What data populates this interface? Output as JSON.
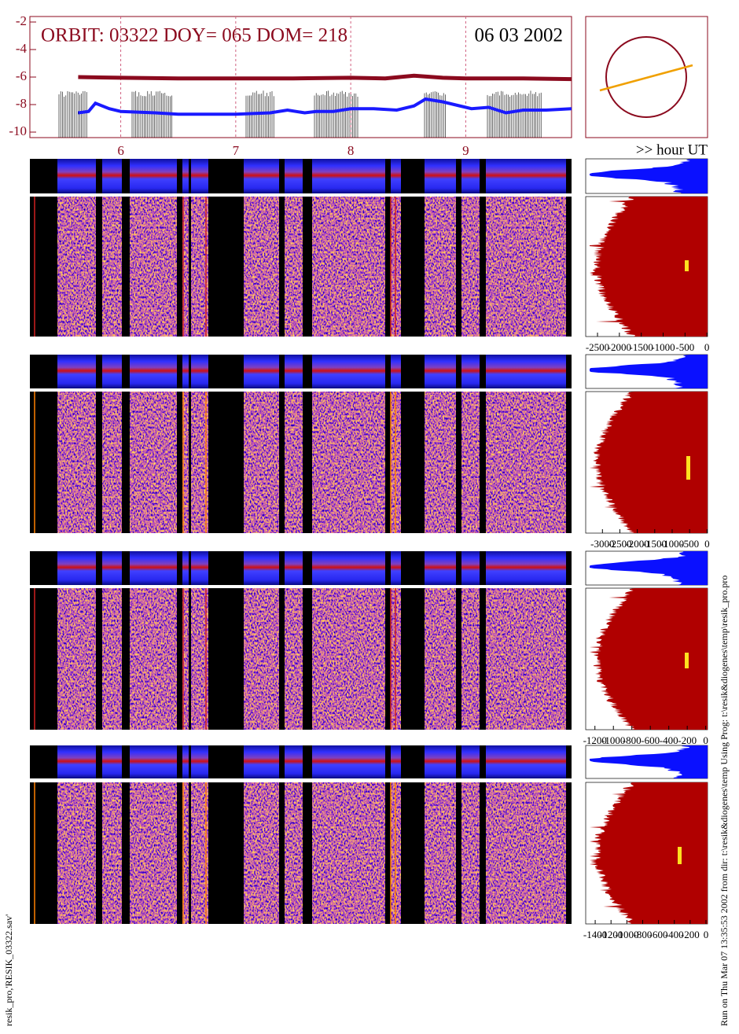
{
  "chart_data": {
    "type": "line",
    "title": "ORBIT: 03322 DOY=  065 DOM=  218",
    "date": "06 03 2002",
    "x_label": ">> hour UT",
    "xlim": [
      5.21,
      9.92
    ],
    "xticks": [
      6,
      7,
      8,
      9
    ],
    "ylim": [
      -10.4,
      -1.6
    ],
    "yticks": [
      -2,
      -4,
      -6,
      -8,
      -10
    ],
    "grid": true,
    "series": [
      {
        "color": "#8b0a1e",
        "x": [
          5.63,
          6.0,
          6.5,
          7.0,
          7.5,
          8.0,
          8.3,
          8.55,
          8.8,
          9.0,
          9.5,
          9.92
        ],
        "values": [
          -6.0,
          -6.05,
          -6.1,
          -6.1,
          -6.1,
          -6.05,
          -6.1,
          -5.9,
          -6.05,
          -6.1,
          -6.1,
          -6.15
        ]
      },
      {
        "color": "#1a1aff",
        "x": [
          5.63,
          5.72,
          5.78,
          5.9,
          6.0,
          6.3,
          6.5,
          6.8,
          7.0,
          7.3,
          7.45,
          7.6,
          7.7,
          7.85,
          8.0,
          8.2,
          8.4,
          8.55,
          8.65,
          8.8,
          8.95,
          9.05,
          9.2,
          9.35,
          9.5,
          9.7,
          9.92
        ],
        "values": [
          -8.6,
          -8.5,
          -7.9,
          -8.3,
          -8.5,
          -8.6,
          -8.7,
          -8.7,
          -8.7,
          -8.6,
          -8.4,
          -8.6,
          -8.5,
          -8.5,
          -8.3,
          -8.3,
          -8.4,
          -8.1,
          -7.6,
          -7.8,
          -8.1,
          -8.3,
          -8.2,
          -8.6,
          -8.4,
          -8.4,
          -8.3
        ]
      }
    ]
  },
  "histograms": [
    {
      "xlim": [
        -2770,
        15
      ],
      "xticks": [
        -2500,
        -2000,
        -1500,
        -1000,
        -500,
        0
      ]
    },
    {
      "xlim": [
        -3480,
        15
      ],
      "xticks": [
        -3000,
        -2500,
        -2000,
        -1500,
        -1000,
        -500,
        0
      ]
    },
    {
      "xlim": [
        -1300,
        20
      ],
      "xticks": [
        -1200,
        -1000,
        -800,
        -600,
        -400,
        -200,
        0
      ]
    },
    {
      "xlim": [
        -1520,
        20
      ],
      "xticks": [
        -1400,
        -1200,
        -1000,
        -800,
        -600,
        -400,
        -200,
        0
      ]
    }
  ],
  "footer_left": "resik_pro,'RESIK_03322.sav'",
  "footer_right": "Run on Thu Mar 07 13:35:53 2002  from dir: t:\\resik&diogenes\\temp Using Prog: t:\\resik&diogenes\\temp\\resik_pro.pro"
}
